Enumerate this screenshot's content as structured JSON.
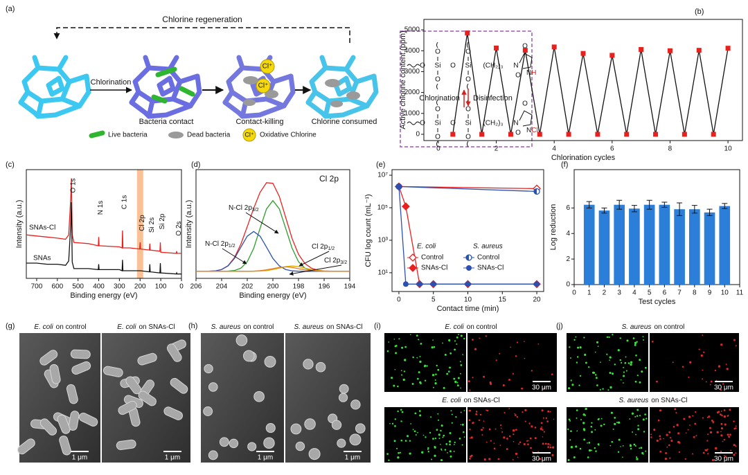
{
  "panel_labels": {
    "a": "(a)",
    "b": "(b)",
    "c": "(c)",
    "d": "(d)",
    "e": "(e)",
    "f": "(f)",
    "g": "(g)",
    "h": "(h)",
    "i": "(i)",
    "j": "(j)"
  },
  "scheme": {
    "regeneration": "Chlorine regeneration",
    "steps": [
      "Chlorination",
      "Bacteria contact",
      "Contact-killing",
      "Chlorine consumed"
    ],
    "badge": "Cl⁺",
    "legend": [
      "Live bacteria",
      "Dead bacteria",
      "Oxidative Chlorine"
    ],
    "forward": "Chlorination",
    "reverse": "Disinfection",
    "structure": {
      "o": "O",
      "si": "Si",
      "chain": "(CH₂)₃",
      "n": "N",
      "h": "H",
      "cl": "Cl"
    }
  },
  "chart_data": [
    {
      "type": "line",
      "xlabel": "Chlorination cycles",
      "ylabel": "Active chlorine content (ppm)",
      "x": [
        0.5,
        1,
        1.5,
        2,
        2.5,
        3,
        3.5,
        4,
        4.5,
        5,
        5.5,
        6,
        6.5,
        7,
        7.5,
        8,
        8.5,
        9,
        9.5,
        10
      ],
      "series": [
        {
          "color": "#111111",
          "marker": "square",
          "marker_color": "#e8211f",
          "values": [
            0,
            4850,
            0,
            4130,
            0,
            4020,
            0,
            4180,
            0,
            3870,
            0,
            3780,
            0,
            4060,
            0,
            4000,
            0,
            4020,
            0,
            4120
          ]
        }
      ],
      "xlim": [
        -0.5,
        10.5
      ],
      "xticks": [
        0,
        2,
        4,
        6,
        8,
        10
      ],
      "ylim": [
        -300,
        5500
      ],
      "yticks": [
        0,
        1000,
        2000,
        3000,
        4000,
        5000
      ]
    },
    {
      "type": "line",
      "xlabel": "Binding energy (eV)",
      "ylabel": "Intensity (a.u.)",
      "x": [
        750,
        700,
        650,
        600,
        560,
        545,
        535,
        532,
        528,
        520,
        450,
        402,
        400,
        398,
        300,
        287,
        285,
        283,
        250,
        202,
        200,
        198,
        155,
        153,
        151,
        104,
        102,
        100,
        25,
        23,
        21,
        0
      ],
      "series": [
        {
          "name": "SNAs-Cl",
          "color": "#e8211f",
          "values": [
            40,
            39,
            38,
            37,
            36,
            40,
            75,
            92,
            40,
            33,
            32,
            30,
            38,
            30,
            29,
            28,
            44,
            28,
            28,
            27,
            33,
            27,
            26,
            32,
            26,
            25,
            33,
            24,
            23,
            25,
            23,
            23
          ]
        },
        {
          "name": "SNAs",
          "color": "#111111",
          "values": [
            14,
            14,
            13,
            13,
            12,
            16,
            50,
            70,
            15,
            9,
            9,
            8,
            13,
            8,
            8,
            7,
            17,
            7,
            7,
            7,
            7,
            7,
            6,
            13,
            6,
            5,
            14,
            5,
            4,
            5,
            4,
            4
          ]
        }
      ],
      "annotations": [
        {
          "text": "O 1s",
          "x": 532
        },
        {
          "text": "N 1s",
          "x": 400
        },
        {
          "text": "C 1s",
          "x": 285
        },
        {
          "text": "Cl 2p",
          "x": 200
        },
        {
          "text": "Si 2s",
          "x": 153
        },
        {
          "text": "Si 2p",
          "x": 102
        },
        {
          "text": "O 2s",
          "x": 23
        }
      ],
      "band": [
        215,
        185
      ],
      "band_color": "#f7b27a",
      "xlim": [
        750,
        0
      ],
      "xticks": [
        700,
        600,
        500,
        400,
        300,
        200,
        100,
        0
      ],
      "ylim": [
        0,
        100
      ]
    },
    {
      "type": "line",
      "title": "Cl 2p",
      "xlabel": "Binding energy (eV)",
      "ylabel": "Intensity (a.u.)",
      "x": [
        206,
        205.5,
        205,
        204.5,
        204,
        203.5,
        203,
        202.5,
        202,
        201.5,
        201,
        200.5,
        200,
        199.5,
        199,
        198.5,
        198,
        197.5,
        197,
        196.5,
        196,
        195.5,
        195,
        194.5,
        194
      ],
      "series": [
        {
          "color": "#e8211f",
          "values": [
            0,
            0,
            0.1,
            0.5,
            2.0,
            6.3,
            15.5,
            30.8,
            50.5,
            71.3,
            89.3,
            100.3,
            99.6,
            84.7,
            60.9,
            36.9,
            19.2,
            8.7,
            3.6,
            1.2,
            0.3,
            0.1,
            0,
            0,
            0
          ]
        },
        {
          "color": "#2a9d2a",
          "values": [
            0,
            0,
            0,
            0,
            0,
            0.2,
            0.9,
            3.5,
            10.8,
            26,
            48.6,
            70.6,
            80,
            70.6,
            48.6,
            26,
            10.8,
            3.5,
            0.9,
            0.2,
            0,
            0,
            0,
            0,
            0
          ]
        },
        {
          "color": "#2c50b0",
          "values": [
            0,
            0,
            0.1,
            0.5,
            2.0,
            6.1,
            14.6,
            27.3,
            39.7,
            45,
            39.7,
            27.3,
            14.6,
            6.1,
            2.0,
            0.5,
            0.1,
            0,
            0,
            0,
            0,
            0,
            0,
            0,
            0
          ]
        },
        {
          "color": "#d9a900",
          "values": [
            0,
            0,
            0,
            0,
            0,
            0,
            0,
            0,
            0,
            0.1,
            0.3,
            0.8,
            2.0,
            3.6,
            5.3,
            6,
            5.3,
            3.6,
            2.0,
            0.8,
            0.3,
            0.1,
            0,
            0,
            0
          ]
        },
        {
          "color": "#e87b1e",
          "values": [
            0,
            0,
            0,
            0,
            0,
            0,
            0,
            0,
            0,
            0.2,
            0.7,
            1.6,
            3.0,
            4.4,
            5,
            4.4,
            3.0,
            1.6,
            0.7,
            0.2,
            0,
            0,
            0,
            0,
            0
          ]
        }
      ],
      "annotations": [
        {
          "text": "N-Cl 2p",
          "sub": "3/2"
        },
        {
          "text": "N-Cl 2p",
          "sub": "1/2"
        },
        {
          "text": "Cl 2p",
          "sub": "1/2"
        },
        {
          "text": "Cl 2p",
          "sub": "3/2"
        }
      ],
      "xlim": [
        206,
        194
      ],
      "xticks": [
        206,
        204,
        202,
        200,
        198,
        196,
        194
      ],
      "ylim": [
        -8,
        115
      ]
    },
    {
      "type": "line",
      "xlabel": "Contact time (min)",
      "ylabel": "CFU log count (mL⁻¹)",
      "ylog": true,
      "series": [
        {
          "group": "E. coli",
          "name": "Control",
          "color": "#e8211f",
          "marker": "diamond-open",
          "x": [
            0,
            20
          ],
          "values": [
            2000000,
            1500000
          ]
        },
        {
          "group": "E. coli",
          "name": "SNAs-Cl",
          "color": "#e8211f",
          "marker": "diamond",
          "x": [
            0,
            1,
            3,
            5,
            10,
            20
          ],
          "values": [
            2000000,
            120000,
            2,
            2,
            2,
            2
          ]
        },
        {
          "group": "S. aureus",
          "name": "Control",
          "color": "#2c50b0",
          "marker": "circle-half",
          "x": [
            0,
            20
          ],
          "values": [
            2000000,
            1000000
          ]
        },
        {
          "group": "S. aureus",
          "name": "SNAs-Cl",
          "color": "#2c50b0",
          "marker": "circle",
          "x": [
            0,
            1,
            3,
            5,
            10,
            20
          ],
          "values": [
            2000000,
            2,
            2,
            2,
            2,
            2
          ]
        }
      ],
      "xlim": [
        -1,
        21
      ],
      "xticks": [
        0,
        5,
        10,
        15,
        20
      ],
      "ylim": [
        0.7,
        22000000
      ],
      "yticks": [
        {
          "value": 10,
          "label": "10¹"
        },
        {
          "value": 1000,
          "label": "10³"
        },
        {
          "value": 100000,
          "label": "10⁵"
        },
        {
          "value": 10000000,
          "label": "10⁷"
        }
      ]
    },
    {
      "type": "bar",
      "xlabel": "Test cycles",
      "ylabel": "Log reduction",
      "color": "#2b7fd8",
      "x": [
        1,
        2,
        3,
        4,
        5,
        6,
        7,
        8,
        9,
        10
      ],
      "values": [
        6.25,
        5.8,
        6.25,
        5.95,
        6.25,
        6.25,
        5.9,
        5.9,
        5.65,
        6.15
      ],
      "errors": [
        0.25,
        0.2,
        0.35,
        0.25,
        0.35,
        0.2,
        0.5,
        0.3,
        0.25,
        0.2
      ],
      "xlim": [
        0,
        11
      ],
      "xticks": [
        0,
        1,
        2,
        3,
        4,
        5,
        6,
        7,
        8,
        9,
        10,
        11
      ],
      "ylim": [
        0,
        9
      ],
      "yticks": [
        0,
        2,
        4,
        6
      ]
    }
  ],
  "micrographs": {
    "g": {
      "panels": [
        {
          "species": "E. coli",
          "text": "on control"
        },
        {
          "species": "E. coli",
          "text": "on SNAs-Cl"
        }
      ],
      "scale": "1 μm"
    },
    "h": {
      "panels": [
        {
          "species": "S. aureus",
          "text": "on control"
        },
        {
          "species": "S. aureus",
          "text": "on SNAs-Cl"
        }
      ],
      "scale": "1 μm"
    },
    "i": {
      "panels": [
        {
          "species": "E. coli",
          "text": "on control"
        },
        {
          "species": "E. coli",
          "text": "on SNAs-Cl"
        }
      ],
      "scale": "30 μm"
    },
    "j": {
      "panels": [
        {
          "species": "S. aureus",
          "text": "on control"
        },
        {
          "species": "S. aureus",
          "text": "on SNAs-Cl"
        }
      ],
      "scale": "30 μm"
    }
  }
}
